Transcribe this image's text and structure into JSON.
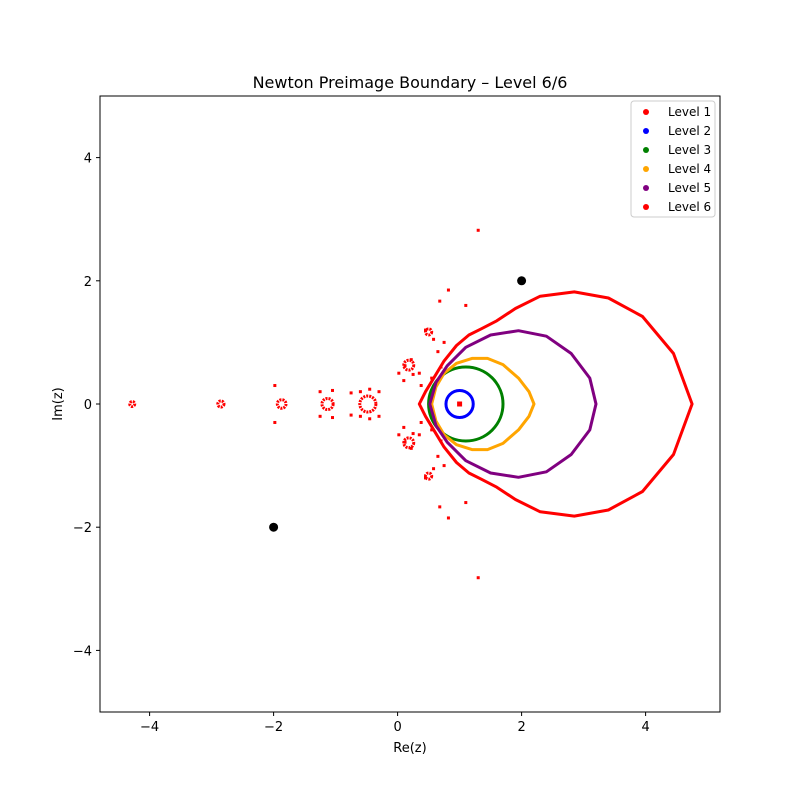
{
  "chart_data": {
    "type": "scatter",
    "title": "Newton Preimage Boundary – Level 6/6",
    "xlabel": "Re(z)",
    "ylabel": "Im(z)",
    "xlim": [
      -4.8,
      5.2
    ],
    "ylim": [
      -5.0,
      5.0
    ],
    "xticks": [
      -4,
      -2,
      0,
      2,
      4
    ],
    "yticks": [
      -4,
      -2,
      0,
      2,
      4
    ],
    "xtick_labels": [
      "−4",
      "−2",
      "0",
      "2",
      "4"
    ],
    "ytick_labels": [
      "−4",
      "−2",
      "0",
      "2",
      "4"
    ],
    "grid": false,
    "legend_position": "top-right",
    "series": [
      {
        "name": "Level 1",
        "color": "#ff0000",
        "description_points": [
          [
            1.0,
            0.0
          ]
        ]
      },
      {
        "name": "Level 2",
        "color": "#0000ff",
        "curve": {
          "kind": "circle",
          "center": [
            1.0,
            0.0
          ],
          "radius": 0.22
        }
      },
      {
        "name": "Level 3",
        "color": "#008000",
        "curve": {
          "kind": "circle",
          "center": [
            1.1,
            0.0
          ],
          "radius": 0.6
        }
      },
      {
        "name": "Level 4",
        "color": "#ffa500",
        "curve": {
          "kind": "loop",
          "x": [
            0.55,
            0.62,
            0.75,
            0.95,
            1.2,
            1.45,
            1.7,
            1.95,
            2.12,
            2.2,
            2.12,
            1.95,
            1.7,
            1.45,
            1.2,
            0.95,
            0.75,
            0.62,
            0.55
          ],
          "y": [
            0.0,
            0.28,
            0.5,
            0.66,
            0.74,
            0.74,
            0.64,
            0.42,
            0.2,
            0.0,
            -0.2,
            -0.42,
            -0.64,
            -0.74,
            -0.74,
            -0.66,
            -0.5,
            -0.28,
            0.0
          ]
        }
      },
      {
        "name": "Level 5",
        "color": "#800080",
        "curve": {
          "kind": "loop",
          "x": [
            0.52,
            0.62,
            0.8,
            1.1,
            1.5,
            1.95,
            2.4,
            2.8,
            3.1,
            3.2,
            3.1,
            2.8,
            2.4,
            1.95,
            1.5,
            1.1,
            0.8,
            0.62,
            0.52
          ],
          "y": [
            0.0,
            0.35,
            0.62,
            0.92,
            1.12,
            1.19,
            1.1,
            0.82,
            0.42,
            0.0,
            -0.42,
            -0.82,
            -1.1,
            -1.19,
            -1.12,
            -0.92,
            -0.62,
            -0.35,
            0.0
          ]
        }
      },
      {
        "name": "Level 6",
        "color": "#ff0000",
        "curve": {
          "kind": "loop",
          "x": [
            0.35,
            0.45,
            0.6,
            0.75,
            0.95,
            1.15,
            1.35,
            1.6,
            1.9,
            2.3,
            2.85,
            3.4,
            3.95,
            4.45,
            4.75,
            4.45,
            3.95,
            3.4,
            2.85,
            2.3,
            1.9,
            1.6,
            1.35,
            1.15,
            0.95,
            0.75,
            0.6,
            0.45,
            0.35
          ],
          "y": [
            0.0,
            0.2,
            0.45,
            0.7,
            0.95,
            1.12,
            1.22,
            1.35,
            1.55,
            1.75,
            1.82,
            1.72,
            1.42,
            0.82,
            0.0,
            -0.82,
            -1.42,
            -1.72,
            -1.82,
            -1.75,
            -1.55,
            -1.35,
            -1.22,
            -1.12,
            -0.95,
            -0.7,
            -0.45,
            -0.2,
            0.0
          ]
        },
        "clusters": [
          {
            "center": [
              -0.48,
              0.0
            ],
            "radius": 0.13
          },
          {
            "center": [
              -1.13,
              0.0
            ],
            "radius": 0.09
          },
          {
            "center": [
              -1.87,
              0.0
            ],
            "radius": 0.07
          },
          {
            "center": [
              -2.85,
              0.0
            ],
            "radius": 0.05
          },
          {
            "center": [
              -4.28,
              0.0
            ],
            "radius": 0.03
          },
          {
            "center": [
              0.18,
              0.63
            ],
            "radius": 0.08
          },
          {
            "center": [
              0.18,
              -0.63
            ],
            "radius": 0.08
          },
          {
            "center": [
              0.5,
              1.17
            ],
            "radius": 0.05
          },
          {
            "center": [
              0.5,
              -1.17
            ],
            "radius": 0.05
          }
        ],
        "points": [
          [
            1.3,
            2.82
          ],
          [
            1.3,
            -2.82
          ],
          [
            0.82,
            1.85
          ],
          [
            0.82,
            -1.85
          ],
          [
            0.68,
            1.67
          ],
          [
            0.68,
            -1.67
          ],
          [
            1.1,
            1.6
          ],
          [
            1.1,
            -1.6
          ],
          [
            -0.6,
            0.2
          ],
          [
            -0.6,
            -0.2
          ],
          [
            -0.3,
            0.2
          ],
          [
            -0.3,
            -0.2
          ],
          [
            -0.75,
            0.18
          ],
          [
            -0.75,
            -0.18
          ],
          [
            -1.25,
            0.2
          ],
          [
            -1.25,
            -0.2
          ],
          [
            -1.05,
            0.22
          ],
          [
            -1.05,
            -0.22
          ],
          [
            -1.98,
            0.3
          ],
          [
            -1.98,
            -0.3
          ],
          [
            0.02,
            0.5
          ],
          [
            0.02,
            -0.5
          ],
          [
            0.1,
            0.38
          ],
          [
            0.1,
            -0.38
          ],
          [
            0.35,
            0.5
          ],
          [
            0.35,
            -0.5
          ],
          [
            0.65,
            0.85
          ],
          [
            0.65,
            -0.85
          ],
          [
            0.75,
            1.0
          ],
          [
            0.75,
            -1.0
          ],
          [
            0.38,
            0.3
          ],
          [
            0.38,
            -0.3
          ],
          [
            0.25,
            0.48
          ],
          [
            0.25,
            -0.48
          ],
          [
            -0.45,
            0.24
          ],
          [
            -0.45,
            -0.24
          ],
          [
            0.55,
            0.42
          ],
          [
            0.55,
            -0.42
          ],
          [
            0.7,
            0.6
          ],
          [
            0.7,
            -0.6
          ],
          [
            0.12,
            0.62
          ],
          [
            0.12,
            -0.62
          ],
          [
            0.22,
            0.72
          ],
          [
            0.22,
            -0.72
          ],
          [
            0.45,
            1.2
          ],
          [
            0.45,
            -1.2
          ],
          [
            0.58,
            1.05
          ],
          [
            0.58,
            -1.05
          ]
        ]
      }
    ],
    "marked_points": {
      "color": "#000000",
      "points": [
        [
          2.0,
          2.0
        ],
        [
          -2.0,
          -2.0
        ]
      ]
    }
  }
}
